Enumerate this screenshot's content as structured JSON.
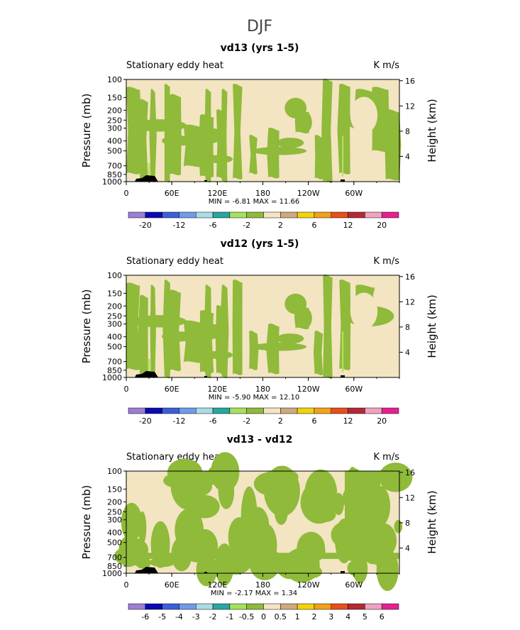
{
  "figure_title": "DJF",
  "colors": {
    "beige": "#f3e4c2",
    "green": "#8fba3a",
    "light_green": "#b9e06a",
    "terrain": "#000000"
  },
  "chart_data": [
    {
      "type": "heatmap",
      "title": "vd13 (yrs 1-5)",
      "subtitle_left": "Stationary eddy heat",
      "subtitle_right": "K m/s",
      "ylabel": "Pressure (mb)",
      "ylabel_right": "Height (km)",
      "x_ticks": [
        "0",
        "60E",
        "120E",
        "180",
        "120W",
        "60W"
      ],
      "y_ticks": [
        "100",
        "150",
        "200",
        "250",
        "300",
        "400",
        "500",
        "700",
        "850",
        "1000"
      ],
      "y_right_ticks": [
        "16",
        "12",
        "8",
        "4"
      ],
      "min_max_text": "MIN =   -6.81   MAX =   11.66",
      "colorbar_labels": [
        "-20",
        "-12",
        "-6",
        "-2",
        "2",
        "6",
        "12",
        "20"
      ],
      "colorbar_colors": [
        "#9b7fd4",
        "#0a0ab4",
        "#3a5fd8",
        "#6f9be8",
        "#a9dde3",
        "#27a7a0",
        "#a6e05f",
        "#8fba3a",
        "#f3e4c2",
        "#cfa97c",
        "#f2d20f",
        "#f2a11a",
        "#e94e1b",
        "#b32a34",
        "#f0a2c1",
        "#e6208f"
      ],
      "field": "Stationary eddy heat flux, pressure vs longitude"
    },
    {
      "type": "heatmap",
      "title": "vd12 (yrs 1-5)",
      "subtitle_left": "Stationary eddy heat",
      "subtitle_right": "K m/s",
      "ylabel": "Pressure (mb)",
      "ylabel_right": "Height (km)",
      "x_ticks": [
        "0",
        "60E",
        "120E",
        "180",
        "120W",
        "60W"
      ],
      "y_ticks": [
        "100",
        "150",
        "200",
        "250",
        "300",
        "400",
        "500",
        "700",
        "850",
        "1000"
      ],
      "y_right_ticks": [
        "16",
        "12",
        "8",
        "4"
      ],
      "min_max_text": "MIN =   -5.90   MAX =   12.10",
      "colorbar_labels": [
        "-20",
        "-12",
        "-6",
        "-2",
        "2",
        "6",
        "12",
        "20"
      ],
      "colorbar_colors": [
        "#9b7fd4",
        "#0a0ab4",
        "#3a5fd8",
        "#6f9be8",
        "#a9dde3",
        "#27a7a0",
        "#a6e05f",
        "#8fba3a",
        "#f3e4c2",
        "#cfa97c",
        "#f2d20f",
        "#f2a11a",
        "#e94e1b",
        "#b32a34",
        "#f0a2c1",
        "#e6208f"
      ],
      "field": "Stationary eddy heat flux, pressure vs longitude"
    },
    {
      "type": "heatmap",
      "title": "vd13 - vd12",
      "subtitle_left": "Stationary eddy heat",
      "subtitle_right": "K m/s",
      "ylabel": "Pressure (mb)",
      "ylabel_right": "Height (km)",
      "x_ticks": [
        "0",
        "60E",
        "120E",
        "180",
        "120W",
        "60W"
      ],
      "y_ticks": [
        "100",
        "150",
        "200",
        "250",
        "300",
        "400",
        "500",
        "700",
        "850",
        "1000"
      ],
      "y_right_ticks": [
        "16",
        "12",
        "8",
        "4"
      ],
      "min_max_text": "MIN =   -2.17   MAX =    1.34",
      "colorbar_labels": [
        "-6",
        "-5",
        "-4",
        "-3",
        "-2",
        "-1",
        "-0.5",
        "0",
        "0.5",
        "1",
        "2",
        "3",
        "4",
        "5",
        "6"
      ],
      "colorbar_colors": [
        "#9b7fd4",
        "#0a0ab4",
        "#3a5fd8",
        "#6f9be8",
        "#a9dde3",
        "#27a7a0",
        "#a6e05f",
        "#8fba3a",
        "#f3e4c2",
        "#cfa97c",
        "#f2d20f",
        "#f2a11a",
        "#e94e1b",
        "#b32a34",
        "#f0a2c1",
        "#e6208f"
      ],
      "field": "Difference of stationary eddy heat flux"
    }
  ]
}
